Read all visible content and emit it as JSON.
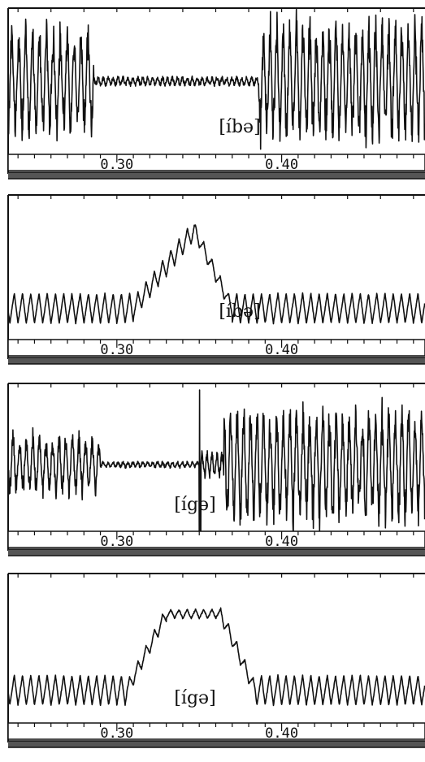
{
  "figure": {
    "colors": {
      "ink": "#111111",
      "paper": "#ffffff",
      "band": "#555555"
    }
  },
  "chart_data": [
    {
      "type": "line",
      "label": "[íbə]",
      "signal": "waveform",
      "xlim": [
        0.234,
        0.487
      ],
      "ticks": [
        {
          "value": 0.3,
          "text": "0.30"
        },
        {
          "value": 0.4,
          "text": "0.40"
        }
      ],
      "segments": [
        {
          "x": [
            0.234,
            0.286
          ],
          "kind": "osc",
          "amp": 0.8,
          "period": 0.0042,
          "base": 0.0
        },
        {
          "x": [
            0.286,
            0.386
          ],
          "kind": "quiet",
          "amp": 0.07,
          "period": 0.003,
          "base": 0.0
        },
        {
          "x": [
            0.386,
            0.487
          ],
          "kind": "osc",
          "amp": 0.92,
          "period": 0.004,
          "base": 0.0
        }
      ],
      "grid": false
    },
    {
      "type": "line",
      "label": "[íbə]",
      "signal": "waveform",
      "xlim": [
        0.234,
        0.487
      ],
      "ticks": [
        {
          "value": 0.3,
          "text": "0.30"
        },
        {
          "value": 0.4,
          "text": "0.40"
        }
      ],
      "segments": [
        {
          "x": [
            0.234,
            0.31
          ],
          "kind": "tri",
          "amp": 0.2,
          "period": 0.005,
          "base": -0.3
        },
        {
          "x": [
            0.31,
            0.347
          ],
          "kind": "rise",
          "amp": 0.14,
          "period": 0.005,
          "base": -0.3,
          "to": 0.75
        },
        {
          "x": [
            0.347,
            0.37
          ],
          "kind": "fall",
          "amp": 0.1,
          "period": 0.005,
          "base": 0.75,
          "to": -0.3
        },
        {
          "x": [
            0.37,
            0.487
          ],
          "kind": "tri",
          "amp": 0.2,
          "period": 0.005,
          "base": -0.3
        }
      ],
      "grid": false
    },
    {
      "type": "line",
      "label": "[ígə]",
      "signal": "waveform",
      "xlim": [
        0.234,
        0.487
      ],
      "ticks": [
        {
          "value": 0.3,
          "text": "0.30"
        },
        {
          "value": 0.4,
          "text": "0.40"
        }
      ],
      "segments": [
        {
          "x": [
            0.234,
            0.29
          ],
          "kind": "osc",
          "amp": 0.45,
          "period": 0.004,
          "base": 0.0
        },
        {
          "x": [
            0.29,
            0.35
          ],
          "kind": "quiet",
          "amp": 0.05,
          "period": 0.003,
          "base": 0.0
        },
        {
          "x": [
            0.35,
            0.351
          ],
          "kind": "spike",
          "amp": 1.0,
          "period": 0.004,
          "base": 0.0
        },
        {
          "x": [
            0.351,
            0.365
          ],
          "kind": "osc",
          "amp": 0.2,
          "period": 0.003,
          "base": 0.0
        },
        {
          "x": [
            0.365,
            0.487
          ],
          "kind": "osc",
          "amp": 0.85,
          "period": 0.004,
          "base": 0.0
        }
      ],
      "grid": false
    },
    {
      "type": "line",
      "label": "[ígə]",
      "signal": "waveform",
      "xlim": [
        0.234,
        0.487
      ],
      "ticks": [
        {
          "value": 0.3,
          "text": "0.30"
        },
        {
          "value": 0.4,
          "text": "0.40"
        }
      ],
      "segments": [
        {
          "x": [
            0.234,
            0.306
          ],
          "kind": "tri",
          "amp": 0.2,
          "period": 0.005,
          "base": -0.3
        },
        {
          "x": [
            0.306,
            0.33
          ],
          "kind": "rise",
          "amp": 0.1,
          "period": 0.005,
          "base": -0.3,
          "to": 0.72
        },
        {
          "x": [
            0.33,
            0.363
          ],
          "kind": "tri",
          "amp": 0.06,
          "period": 0.005,
          "base": 0.72
        },
        {
          "x": [
            0.363,
            0.384
          ],
          "kind": "fall",
          "amp": 0.1,
          "period": 0.005,
          "base": 0.72,
          "to": -0.3
        },
        {
          "x": [
            0.384,
            0.487
          ],
          "kind": "tri",
          "amp": 0.2,
          "period": 0.005,
          "base": -0.3
        }
      ],
      "grid": false
    }
  ]
}
